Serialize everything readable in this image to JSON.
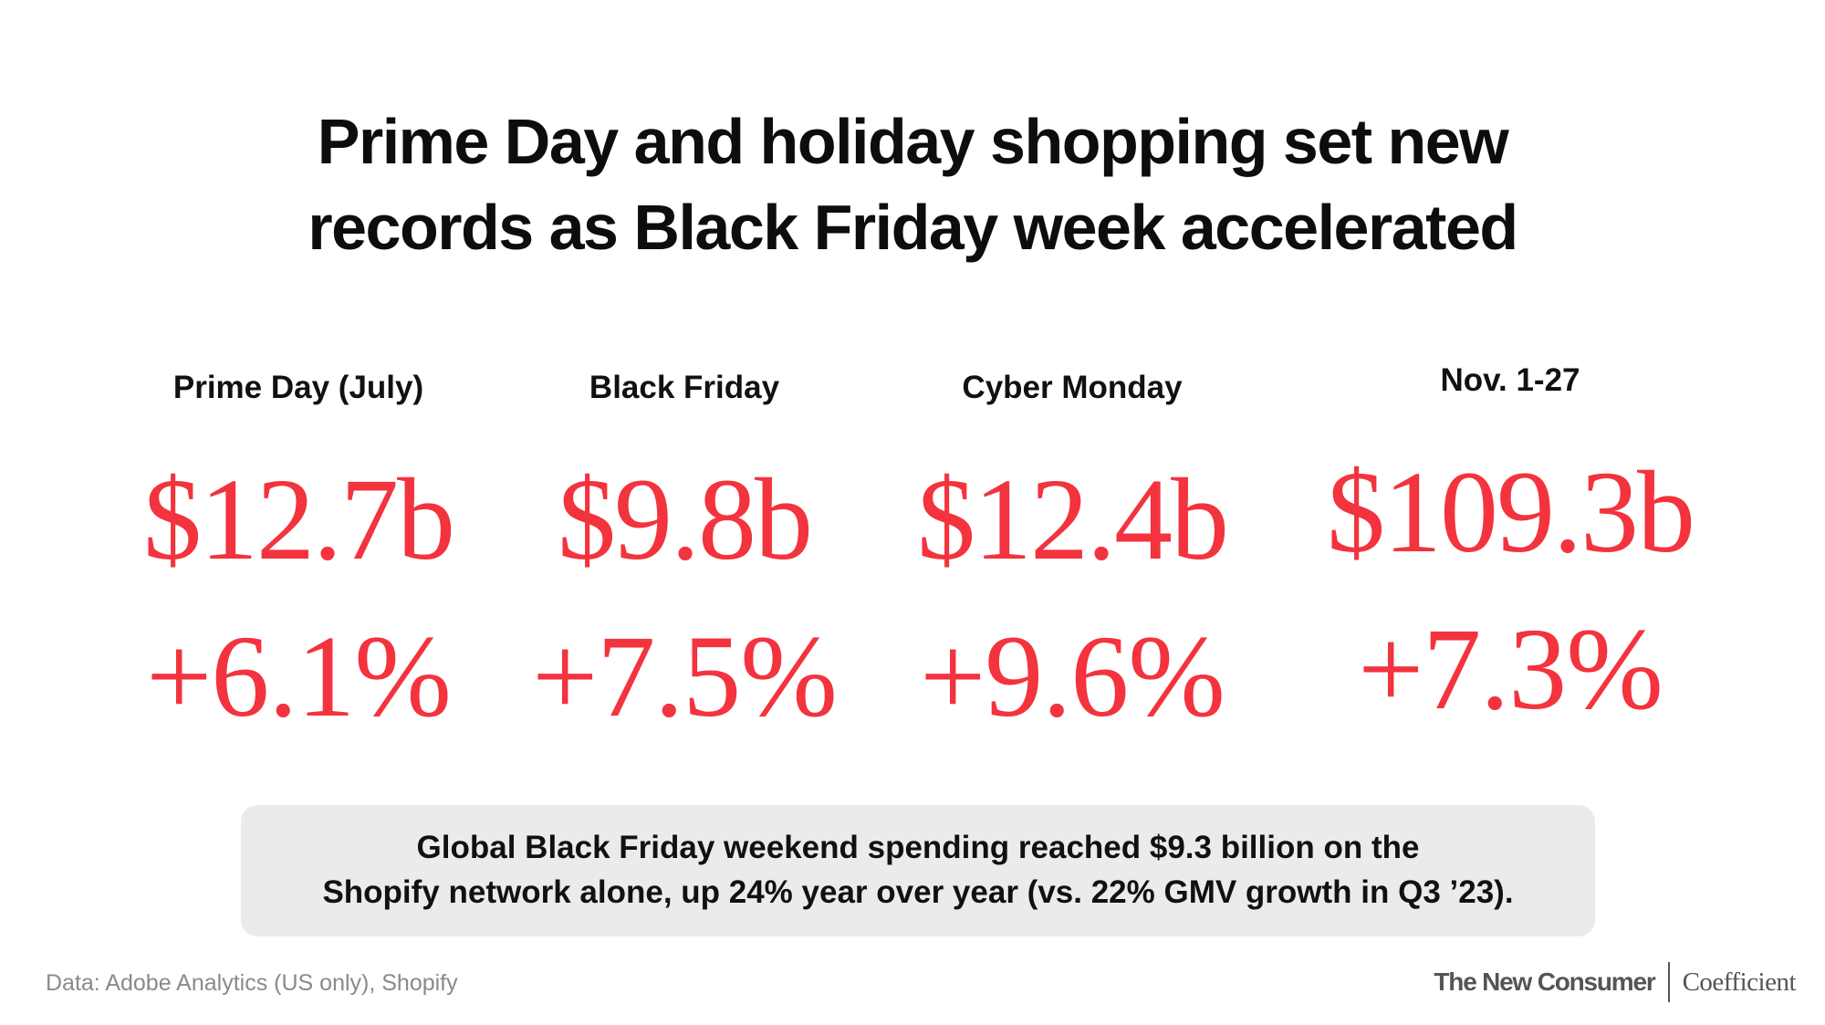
{
  "title": {
    "line1": "Prime Day and holiday shopping set new",
    "line2": "records as Black Friday week accelerated"
  },
  "stats": [
    {
      "label": "Prime Day (July)",
      "value": "$12.7b",
      "change": "+6.1%"
    },
    {
      "label": "Black Friday",
      "value": "$9.8b",
      "change": "+7.5%"
    },
    {
      "label": "Cyber Monday",
      "value": "$12.4b",
      "change": "+9.6%"
    },
    {
      "label": "Nov. 1-27",
      "value": "$109.3b",
      "change": "+7.3%"
    }
  ],
  "note": {
    "line1": "Global Black Friday weekend spending reached $9.3 billion on the",
    "line2": "Shopify network alone, up 24% year over year (vs. 22% GMV growth in Q3 ’23)."
  },
  "source": "Data: Adobe Analytics (US only), Shopify",
  "brands": {
    "primary": "The New Consumer",
    "secondary": "Coefficient"
  },
  "colors": {
    "accent": "#f3333d",
    "note_background": "#ebebeb",
    "text": "#111111",
    "muted": "#8a8a8a"
  }
}
